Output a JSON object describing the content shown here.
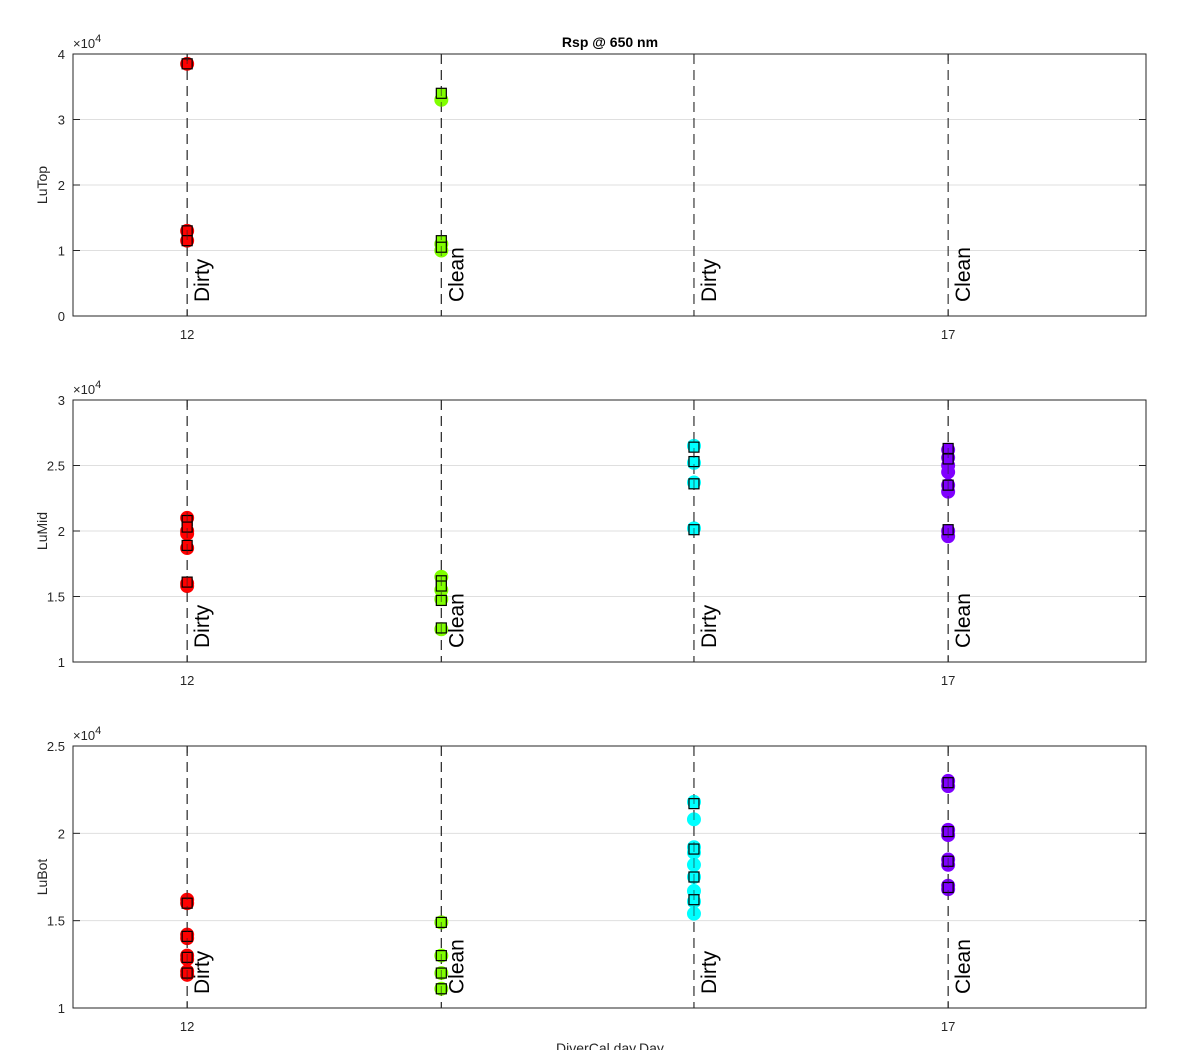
{
  "chart_data": {
    "type": "scatter",
    "title": "Rsp @ 650 nm",
    "xlabel": "DiverCal.day.Day",
    "xlim": [
      11.25,
      18.3
    ],
    "x_ticks": [
      12,
      17
    ],
    "x_tick_labels": [
      "12",
      "17"
    ],
    "event_lines": [
      {
        "x": 12,
        "label": "Dirty"
      },
      {
        "x": 13.67,
        "label": "Clean"
      },
      {
        "x": 15.33,
        "label": "Dirty"
      },
      {
        "x": 17,
        "label": "Clean"
      }
    ],
    "group_colors": [
      "#ff0000",
      "#80ff00",
      "#00ffff",
      "#8000ff"
    ],
    "marker_outline": "#000000",
    "grid": true,
    "subplots": [
      {
        "ylabel": "LuTop",
        "ylim": [
          0,
          40000
        ],
        "y_ticks": [
          0,
          10000,
          20000,
          30000,
          40000
        ],
        "y_tick_labels": [
          "0",
          "1",
          "2",
          "3",
          "4"
        ],
        "exponent_label": "×10",
        "exponent_power": "4",
        "groups": [
          {
            "x": 12,
            "circles": [
              38500,
              13000,
              11500
            ],
            "squares": [
              38500,
              13000,
              11500
            ]
          },
          {
            "x": 13.67,
            "circles": [
              33000,
              11000,
              10000
            ],
            "squares": [
              34000,
              11500,
              10500
            ]
          },
          {
            "x": 15.33,
            "circles": [],
            "squares": []
          },
          {
            "x": 17,
            "circles": [],
            "squares": []
          }
        ]
      },
      {
        "ylabel": "LuMid",
        "ylim": [
          10000,
          30000
        ],
        "y_ticks": [
          10000,
          15000,
          20000,
          25000,
          30000
        ],
        "y_tick_labels": [
          "1",
          "1.5",
          "2",
          "2.5",
          "3"
        ],
        "exponent_label": "×10",
        "exponent_power": "4",
        "groups": [
          {
            "x": 12,
            "circles": [
              21000,
              20000,
              19800,
              18700,
              16000,
              15800
            ],
            "squares": [
              20800,
              20300,
              18900,
              16100
            ]
          },
          {
            "x": 13.67,
            "circles": [
              16500,
              15500,
              14800,
              12500
            ],
            "squares": [
              16200,
              15800,
              14700,
              12600
            ]
          },
          {
            "x": 15.33,
            "circles": [
              26500,
              25200,
              23700,
              20200
            ],
            "squares": [
              26400,
              25300,
              23600,
              20100
            ]
          },
          {
            "x": 17,
            "circles": [
              26200,
              25600,
              25000,
              24500,
              23500,
              23000,
              20000,
              19600
            ],
            "squares": [
              26300,
              25500,
              23500,
              20100
            ]
          }
        ]
      },
      {
        "ylabel": "LuBot",
        "ylim": [
          10000,
          25000
        ],
        "y_ticks": [
          10000,
          15000,
          20000,
          25000
        ],
        "y_tick_labels": [
          "1",
          "1.5",
          "2",
          "2.5"
        ],
        "exponent_label": "×10",
        "exponent_power": "4",
        "groups": [
          {
            "x": 12,
            "circles": [
              16200,
              16000,
              14200,
              14000,
              13000,
              12800,
              12100,
              11900
            ],
            "squares": [
              16000,
              14100,
              12900,
              12000
            ]
          },
          {
            "x": 13.67,
            "circles": [
              14900,
              13000,
              12000,
              11100
            ],
            "squares": [
              14900,
              13000,
              12000,
              11100
            ]
          },
          {
            "x": 15.33,
            "circles": [
              21800,
              20800,
              19200,
              18900,
              18200,
              17500,
              16700,
              16100,
              15400
            ],
            "squares": [
              21700,
              19100,
              17500,
              16200
            ]
          },
          {
            "x": 17,
            "circles": [
              23000,
              22700,
              20200,
              19900,
              18500,
              18200,
              17000,
              16800
            ],
            "squares": [
              22900,
              20100,
              18400,
              16900
            ]
          }
        ]
      }
    ]
  }
}
